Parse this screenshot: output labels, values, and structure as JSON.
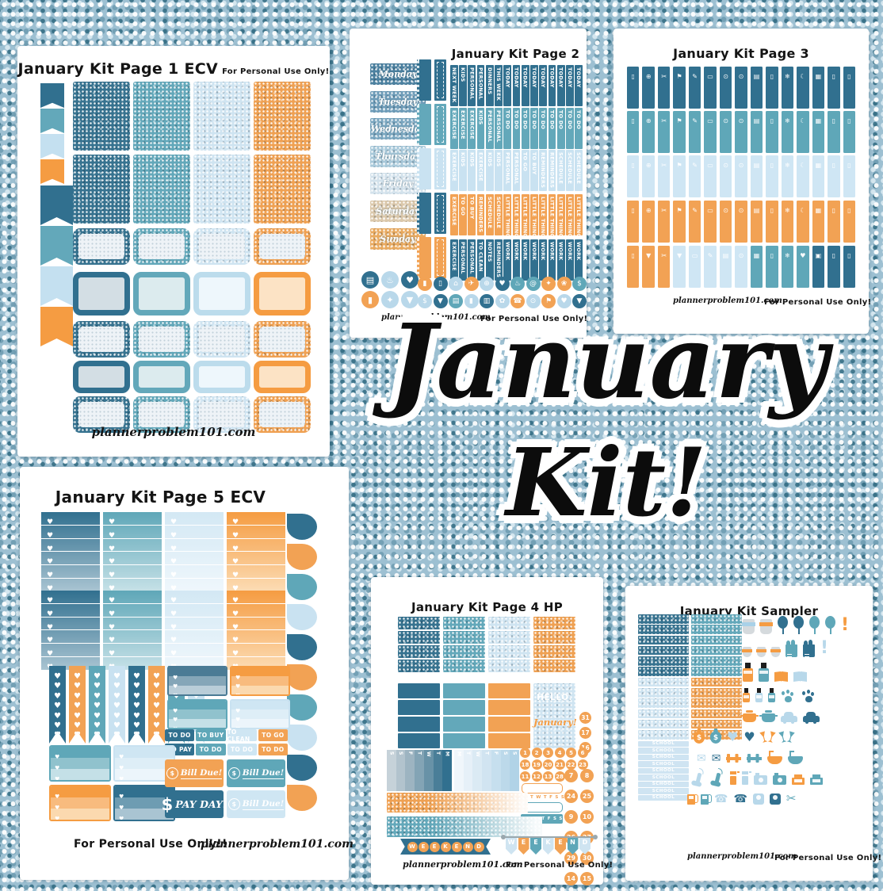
{
  "center": {
    "line1": "January",
    "line2": "Kit!"
  },
  "colors": {
    "dark_teal": "#31708f",
    "mid_teal": "#5fa7b8",
    "light_blue": "#c9e2f1",
    "orange": "#f59c42",
    "bg_blue": "#9dc0d2"
  },
  "pages": {
    "page1": {
      "title": "January Kit Page 1 ECV",
      "note": "For Personal Use Only!",
      "footer": "plannerproblem101.com",
      "flags": [
        "f-dk",
        "f-md",
        "f-lt",
        "f-or"
      ],
      "cols": [
        "b-dk",
        "b-md",
        "b-lt",
        "b-or"
      ]
    },
    "page2": {
      "title": "January Kit Page 2",
      "footer_left": "plannerproblem101.com",
      "footer_right": "For Personal Use Only!",
      "weekdays": [
        {
          "t": "Monday",
          "c": "k-w1"
        },
        {
          "t": "Tuesday",
          "c": "k-w2"
        },
        {
          "t": "Wednesday",
          "c": "k-w3"
        },
        {
          "t": "Thursday",
          "c": "k-w4"
        },
        {
          "t": "Friday",
          "c": "k-w5"
        },
        {
          "t": "Saturday",
          "c": "k-w6"
        },
        {
          "t": "Sunday",
          "c": "k-w7"
        }
      ],
      "washi_groups": [
        "w-dk",
        "w-md",
        "w-lt",
        "w-dk",
        "w-or"
      ],
      "rows": {
        "r1": [
          "NEXT WEEK",
          "KIDS",
          "PERSONAL",
          "PERSONAL",
          "DINNERS",
          "THIS WEEK",
          "TODAY",
          "TODAY",
          "TODAY",
          "TODAY",
          "TODAY",
          "TODAY",
          "TODAY",
          "TODAY",
          "TODAY"
        ],
        "r2": [
          "EXERCISE",
          "EXERCISE",
          "EXERCISE",
          "KIDS",
          "PERSONAL",
          "PERSONAL",
          "TO DO",
          "TO DO",
          "TO DO",
          "TO DO",
          "TO DO",
          "TO DO",
          "TO DO",
          "TO DO",
          "TO DO"
        ],
        "r3": [
          "EXERCISE",
          "KIDS",
          "KIDS",
          "EXERCISE",
          "KIDS",
          "KIDS",
          "PERSONAL",
          "PERSONAL",
          "TO GO",
          "TO BUY",
          "REMINDERS",
          "REMINDERS",
          "SCHEDULE",
          "SCHEDULE",
          "SCHEDULE"
        ],
        "r4": [
          "EXERCISE",
          "TO GO",
          "TO BUY",
          "REMINDERS",
          "SCHEDULE",
          "SCHEDULE",
          "LITTLE THINGS",
          "LITTLE THINGS",
          "LITTLE THINGS",
          "LITTLE THINGS",
          "LITTLE THINGS",
          "LITTLE THINGS",
          "LITTLE THINGS",
          "LITTLE THINGS",
          "LITTLE THINGS"
        ],
        "r5": [
          "EXERCISE",
          "PERSONAL",
          "PERSONAL",
          "TO CLEAN",
          "NOTES",
          "REMINDERS",
          "WORK",
          "WORK",
          "WORK",
          "WORK",
          "WORK",
          "WORK",
          "WORK",
          "WORK",
          "WORK"
        ]
      },
      "icon_cluster": [
        {
          "c": "cb-dk",
          "g": "▤",
          "n": "laptop-icon"
        },
        {
          "c": "cb-lt",
          "g": "♨",
          "n": "drink-icon"
        },
        {
          "c": "cb-dk",
          "g": "♥",
          "n": "heart-icon"
        },
        {
          "c": "cb-or",
          "g": "▮",
          "n": "phone-icon"
        },
        {
          "c": "cb-lt",
          "g": "✦",
          "n": "spray-icon"
        },
        {
          "c": "cb-lt",
          "g": "▼",
          "n": "shirt-icon"
        }
      ],
      "icon_row1": [
        {
          "c": "cb-or",
          "g": "▮",
          "n": "nail-polish-icon"
        },
        {
          "c": "cb-dk",
          "g": "▯",
          "n": "trash-icon"
        },
        {
          "c": "cb-lt",
          "g": "⌂",
          "n": "home-icon"
        },
        {
          "c": "cb-or",
          "g": "✈",
          "n": "airplane-icon"
        },
        {
          "c": "cb-lt",
          "g": "⊕",
          "n": "globe-icon"
        },
        {
          "c": "cb-dk",
          "g": "♥",
          "n": "heart-icon"
        },
        {
          "c": "cb-md",
          "g": "♨",
          "n": "meal-icon"
        },
        {
          "c": "cb-md",
          "g": "@",
          "n": "at-sign-icon"
        },
        {
          "c": "cb-or",
          "g": "✦",
          "n": "spray-icon"
        },
        {
          "c": "cb-or",
          "g": "❀",
          "n": "flower-icon"
        },
        {
          "c": "cb-md",
          "g": "$",
          "n": "dollar-icon"
        }
      ],
      "icon_row2": [
        {
          "c": "cb-lt",
          "g": "$",
          "n": "dollar-icon"
        },
        {
          "c": "cb-dk",
          "g": "▼",
          "n": "shirt-icon"
        },
        {
          "c": "cb-md",
          "g": "▤",
          "n": "laptop-icon"
        },
        {
          "c": "cb-lt",
          "g": "▮",
          "n": "nail-polish-icon"
        },
        {
          "c": "cb-dk",
          "g": "▥",
          "n": "book-icon"
        },
        {
          "c": "cb-lt",
          "g": "✿",
          "n": "flower-icon"
        },
        {
          "c": "cb-or",
          "g": "☎",
          "n": "phone-icon"
        },
        {
          "c": "cb-lt",
          "g": "⊙",
          "n": "laundry-icon"
        },
        {
          "c": "cb-or",
          "g": "⚑",
          "n": "gas-pump-icon"
        },
        {
          "c": "cb-lt",
          "g": "♥",
          "n": "heart-icon"
        },
        {
          "c": "cb-dk",
          "g": "▼",
          "n": "shirt-icon"
        }
      ]
    },
    "page3": {
      "title": "January Kit Page 3",
      "footer_left": "plannerproblem101.com",
      "footer_right": "For Personal Use Only!",
      "icons": [
        "▯",
        "⊕",
        "✂",
        "⚑",
        "✎",
        "▭",
        "⊙",
        "⊙",
        "▤",
        "▯",
        "❄",
        "☾",
        "▦",
        "▯",
        "▯"
      ],
      "r5": [
        {
          "g": "▯",
          "c": "s-or"
        },
        {
          "g": "▼",
          "c": "s-or"
        },
        {
          "g": "✂",
          "c": "s-or"
        },
        {
          "g": "▼",
          "c": "s-lt"
        },
        {
          "g": "▭",
          "c": "s-lt"
        },
        {
          "g": "✎",
          "c": "s-lt"
        },
        {
          "g": "▤",
          "c": "s-lt"
        },
        {
          "g": "⊙",
          "c": "s-lt"
        },
        {
          "g": "▦",
          "c": "s-md"
        },
        {
          "g": "▯",
          "c": "s-md"
        },
        {
          "g": "❄",
          "c": "s-md"
        },
        {
          "g": "♥",
          "c": "s-md"
        },
        {
          "g": "▣",
          "c": "s-dk"
        },
        {
          "g": "▯",
          "c": "s-dk"
        },
        {
          "g": "▯",
          "c": "s-dk"
        }
      ]
    },
    "page4": {
      "title": "January Kit Page 4 HP",
      "hello": "HELLO.",
      "hello2": "January!",
      "side_nums": [
        "31",
        "17",
        "16"
      ],
      "nums_r1": [
        "1",
        "2",
        "3",
        "4",
        "5",
        "6"
      ],
      "nums_r2": [
        "18",
        "19",
        "20",
        "21",
        "22",
        "23"
      ],
      "nums_r3": [
        "11",
        "12",
        "13",
        "28"
      ],
      "pair_nums": [
        "7",
        "8",
        "24",
        "25",
        "9",
        "10",
        "26",
        "27",
        "29",
        "30",
        "14",
        "15"
      ],
      "mtwtfss": [
        "M",
        "T",
        "W",
        "T",
        "F",
        "S",
        "S"
      ],
      "dc1": [
        {
          "t": "S",
          "c": "da1"
        },
        {
          "t": "S",
          "c": "da2"
        },
        {
          "t": "F",
          "c": "da3"
        },
        {
          "t": "T",
          "c": "da4"
        },
        {
          "t": "W",
          "c": "da5"
        },
        {
          "t": "T",
          "c": "da6"
        },
        {
          "t": "M",
          "c": "da7"
        }
      ],
      "dc2": [
        {
          "t": "M",
          "c": "db1"
        },
        {
          "t": "T",
          "c": "db2"
        },
        {
          "t": "W",
          "c": "db3"
        },
        {
          "t": "T",
          "c": "db4"
        },
        {
          "t": "F",
          "c": "db5"
        },
        {
          "t": "S",
          "c": "db6"
        },
        {
          "t": "S",
          "c": "db7"
        }
      ],
      "weekend1": [
        "W",
        "E",
        "E",
        "K",
        "E",
        "N",
        "D"
      ],
      "weekend2": [
        {
          "t": "W",
          "c": "p-lt"
        },
        {
          "t": "E",
          "c": "p-or"
        },
        {
          "t": "E",
          "c": "p-md"
        },
        {
          "t": "K",
          "c": "p-lt"
        },
        {
          "t": "E",
          "c": "p-or"
        },
        {
          "t": "N",
          "c": "p-md"
        },
        {
          "t": "D",
          "c": "p-lt"
        }
      ],
      "footer_left": "plannerproblem101.com",
      "footer_right": "For Personal Use Only!"
    },
    "page5": {
      "title": "January Kit Page 5 ECV",
      "cols": [
        "cl-dk",
        "cl-md",
        "cl-lt",
        "cl-or"
      ],
      "drops": [
        "d-dk",
        "d-or",
        "d-md",
        "d-lt",
        "d-dk",
        "d-or",
        "d-md",
        "d-lt",
        "d-dk",
        "d-or"
      ],
      "hflags": [
        "hf-dk",
        "hf-or",
        "hf-md",
        "hf-lt",
        "hf-dk",
        "hf-or",
        "hf-md",
        "hf-lt"
      ],
      "chips_r1": [
        {
          "t": "TO DO",
          "c": "ch-dk"
        },
        {
          "t": "TO BUY",
          "c": "ch-md"
        },
        {
          "t": "TO CLEAN",
          "c": "ch-lt"
        },
        {
          "t": "TO GO",
          "c": "ch-or"
        }
      ],
      "chips_r2": [
        {
          "t": "TO PAY",
          "c": "ch-dk"
        },
        {
          "t": "TO DO",
          "c": "ch-md"
        },
        {
          "t": "TO DO",
          "c": "ch-lt"
        },
        {
          "t": "TO DO",
          "c": "ch-or"
        }
      ],
      "bill_due": "Bill Due!",
      "pay_day": "PAY DAY!",
      "coin": "$",
      "footer_left": "For Personal Use Only!!",
      "footer_right": "plannerproblem101.com"
    },
    "page6": {
      "title": "January Kit Sampler",
      "school": [
        "SCHOOL",
        "SCHOOL",
        "SCHOOL",
        "SCHOOL",
        "SCHOOL",
        "SCHOOL",
        "SCHOOL",
        "SCHOOL",
        "SCHOOL"
      ],
      "footer_left": "plannerproblem101.com",
      "footer_right": "For Personal Use Only!",
      "rows": {
        "r1": [
          {
            "c": "ic cup lg c-gy",
            "n": "coffee-cup-icon"
          },
          {
            "c": "ic cup lg c-gy b-or",
            "n": "coffee-cup-icon"
          },
          {
            "c": "ic balloon c-dk",
            "n": "balloon-icon"
          },
          {
            "c": "ic balloon c-dk",
            "n": "balloon-icon"
          },
          {
            "c": "ic balloon c-md",
            "n": "balloon-icon"
          },
          {
            "c": "ic balloon c-md",
            "n": "balloon-icon"
          },
          {
            "c": "gi bang c-or",
            "g": "!",
            "n": "exclamation-icon"
          }
        ],
        "r2": [
          {
            "c": "ic cup sm c-gy",
            "n": "coffee-cup-icon"
          },
          {
            "c": "ic cup sm c-gy",
            "n": "coffee-cup-icon"
          },
          {
            "c": "ic cup sm c-gy",
            "n": "coffee-cup-icon"
          },
          {
            "c": "ic bag c-md",
            "n": "grocery-bag-icon"
          },
          {
            "c": "ic bag c-dk",
            "n": "grocery-bag-icon"
          },
          {
            "c": "gi bang c-lt",
            "g": "!",
            "n": "exclamation-icon"
          }
        ],
        "r3": [
          {
            "c": "ic bottle lg c-or",
            "n": "nail-polish-icon"
          },
          {
            "c": "ic bottle lg c-md",
            "n": "nail-polish-icon"
          },
          {
            "c": "ic book c-or",
            "n": "book-icon"
          },
          {
            "c": "ic book c-lt",
            "n": "book-icon"
          }
        ],
        "r4": [
          {
            "c": "ic bottle c-or",
            "n": "nail-polish-icon"
          },
          {
            "c": "ic bottle c-lt",
            "n": "nail-polish-icon"
          },
          {
            "c": "ic bottle c-md",
            "n": "nail-polish-icon"
          },
          {
            "c": "ic paw c-md",
            "n": "paw-print-icon"
          },
          {
            "c": "ic paw c-dk",
            "n": "paw-print-icon"
          }
        ],
        "r5": [
          {
            "c": "ic pot c-or",
            "n": "cooking-pot-icon"
          },
          {
            "c": "ic pot c-md",
            "n": "cooking-pot-icon"
          },
          {
            "c": "ic car c-lt",
            "n": "car-icon"
          },
          {
            "c": "ic car c-dk",
            "n": "car-icon"
          }
        ],
        "r6": [
          {
            "c": "ic money c-or",
            "n": "money-bag-icon"
          },
          {
            "c": "ic money c-md",
            "n": "money-bag-icon"
          },
          {
            "c": "gi heartg c-lt",
            "g": "♥",
            "n": "heart-icon"
          },
          {
            "c": "gi heartg c-dk",
            "g": "♥",
            "n": "heart-icon"
          },
          {
            "c": "ic glasses c-or",
            "n": "champagne-glasses-icon"
          },
          {
            "c": "ic glasses c-md",
            "n": "champagne-glasses-icon"
          }
        ],
        "r7": [
          {
            "c": "gi envg c-lt",
            "g": "✉",
            "n": "envelope-icon"
          },
          {
            "c": "gi envg c-dk",
            "g": "✉",
            "n": "envelope-icon"
          },
          {
            "c": "ic dumb c-or",
            "n": "dumbbell-icon"
          },
          {
            "c": "ic dumb c-md",
            "n": "dumbbell-icon"
          },
          {
            "c": "ic tub c-or",
            "n": "bathtub-icon"
          },
          {
            "c": "ic tub c-md",
            "n": "bathtub-icon"
          }
        ],
        "r8": [
          {
            "c": "ic vac c-lt",
            "n": "vacuum-icon"
          },
          {
            "c": "ic vac c-md",
            "n": "vacuum-icon"
          },
          {
            "c": "ic sprayb c-or",
            "n": "spray-bottle-icon"
          },
          {
            "c": "ic sprayb c-lt",
            "n": "spray-bottle-icon"
          },
          {
            "c": "ic cam c-lt",
            "n": "camera-icon"
          },
          {
            "c": "ic cam c-md",
            "n": "camera-icon"
          },
          {
            "c": "ic printer c-or",
            "n": "printer-icon"
          },
          {
            "c": "ic printer c-md",
            "n": "printer-icon"
          }
        ],
        "r9": [
          {
            "c": "ic pump c-or",
            "n": "gas-pump-icon"
          },
          {
            "c": "ic pump c-md",
            "n": "gas-pump-icon"
          },
          {
            "c": "gi phoneg c-lt",
            "g": "☎",
            "n": "phone-icon"
          },
          {
            "c": "gi phoneg c-dk",
            "g": "☎",
            "n": "phone-icon"
          },
          {
            "c": "ic scale c-lt",
            "n": "scale-icon"
          },
          {
            "c": "ic scale c-dk",
            "n": "scale-icon"
          },
          {
            "c": "gi scisg c-md",
            "g": "✂",
            "n": "scissors-icon"
          }
        ]
      }
    }
  }
}
